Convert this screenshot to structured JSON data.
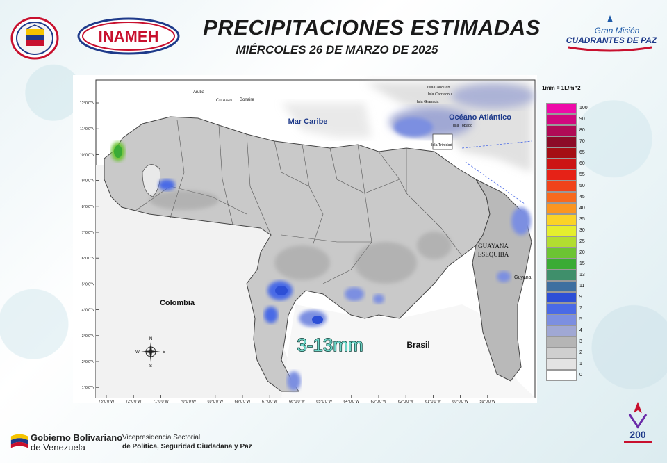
{
  "header": {
    "title": "PRECIPITACIONES ESTIMADAS",
    "date": "MIÉRCOLES 26 DE MARZO DE 2025",
    "inameh_logo_text": "INAMEH",
    "gms_logo_line1": "Gran Misión",
    "gms_logo_line2": "CUADRANTES DE PAZ"
  },
  "map": {
    "unit_note": "1mm = 1L/m^2",
    "places": {
      "mar_caribe": "Mar Caribe",
      "oceano_atlantico": "Océano Atlántico",
      "colombia": "Colombia",
      "brasil": "Brasil",
      "guayana1": "GUAYANA",
      "guayana2": "ESEQUIBA",
      "guyana": "Guyana",
      "aruba": "Aruba",
      "curazao": "Curazao",
      "bonaire": "Bonaire",
      "canouan": "Isla Canouan",
      "carriacou": "Isla Carriacou",
      "granada": "Isla Granada",
      "tobago": "Isla Tobago",
      "trinidad": "Isla Trinidad"
    },
    "annotation": "3-13mm",
    "lat_labels": [
      "12°0'0\"N",
      "11°0'0\"N",
      "10°0'0\"N",
      "9°0'0\"N",
      "8°0'0\"N",
      "7°0'0\"N",
      "6°0'0\"N",
      "5°0'0\"N",
      "4°0'0\"N",
      "3°0'0\"N",
      "2°0'0\"N",
      "1°0'0\"N"
    ],
    "lon_labels": [
      "73°0'0\"W",
      "72°0'0\"W",
      "71°0'0\"W",
      "70°0'0\"W",
      "69°0'0\"W",
      "68°0'0\"W",
      "67°0'0\"W",
      "66°0'0\"W",
      "65°0'0\"W",
      "64°0'0\"W",
      "63°0'0\"W",
      "62°0'0\"W",
      "61°0'0\"W",
      "60°0'0\"W",
      "59°0'0\"W"
    ],
    "compass": {
      "n": "N",
      "s": "S",
      "e": "E",
      "w": "W"
    },
    "legend": [
      {
        "value": "100",
        "color": "#ee0aa8"
      },
      {
        "value": "90",
        "color": "#d1087f"
      },
      {
        "value": "80",
        "color": "#b00a56"
      },
      {
        "value": "70",
        "color": "#8c0b28"
      },
      {
        "value": "65",
        "color": "#a50e14"
      },
      {
        "value": "60",
        "color": "#cc1414"
      },
      {
        "value": "55",
        "color": "#e62217"
      },
      {
        "value": "50",
        "color": "#f0431b"
      },
      {
        "value": "45",
        "color": "#f76a1e"
      },
      {
        "value": "40",
        "color": "#fb9621"
      },
      {
        "value": "35",
        "color": "#fbd327"
      },
      {
        "value": "30",
        "color": "#e5ee2e"
      },
      {
        "value": "25",
        "color": "#b2dd30"
      },
      {
        "value": "20",
        "color": "#6cc433"
      },
      {
        "value": "15",
        "color": "#3aab35"
      },
      {
        "value": "13",
        "color": "#3f8f6b"
      },
      {
        "value": "11",
        "color": "#3e6fa0"
      },
      {
        "value": "9",
        "color": "#2d4fd6"
      },
      {
        "value": "7",
        "color": "#4a6ae6"
      },
      {
        "value": "5",
        "color": "#7c8fe1"
      },
      {
        "value": "4",
        "color": "#a0a8d4"
      },
      {
        "value": "3",
        "color": "#b5b5b5"
      },
      {
        "value": "2",
        "color": "#cfcfcf"
      },
      {
        "value": "1",
        "color": "#e3e3e3"
      },
      {
        "value": "0",
        "color": "#ffffff"
      }
    ]
  },
  "footer": {
    "gov_line1": "Gobierno Bolivariano",
    "gov_line2": "de Venezuela",
    "vice_line1": "Vicepresidencia Sectorial",
    "vice_line2": "de Política, Seguridad Ciudadana y Paz",
    "bicentennial": "200"
  }
}
